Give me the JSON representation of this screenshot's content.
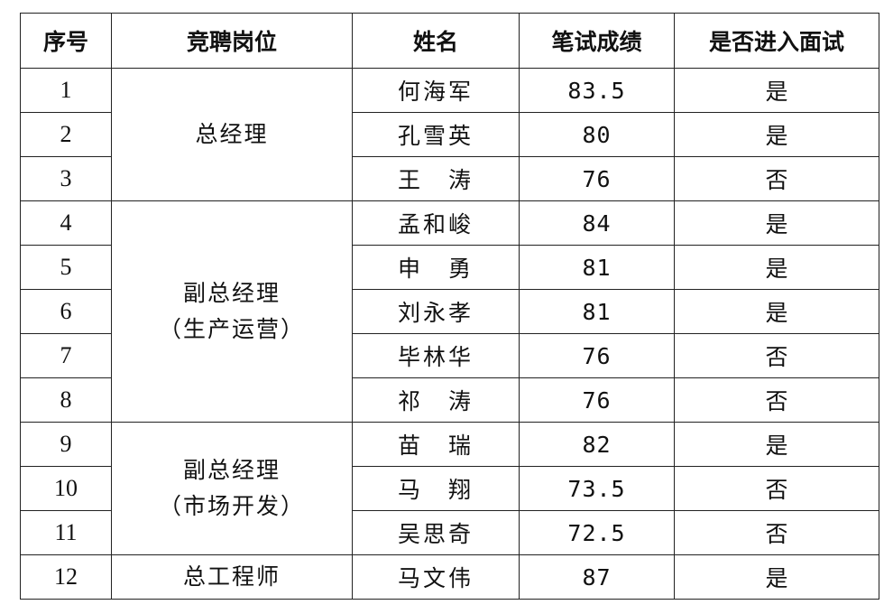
{
  "headers": [
    "序号",
    "竞聘岗位",
    "姓名",
    "笔试成绩",
    "是否进入面试"
  ],
  "positions": [
    {
      "lines": [
        "总经理"
      ]
    },
    {
      "lines": [
        "副总经理",
        "（生产运营）"
      ]
    },
    {
      "lines": [
        "副总经理",
        "（市场开发）"
      ]
    },
    {
      "lines": [
        "总工程师"
      ]
    }
  ],
  "rows": [
    {
      "no": "1",
      "name": "何海军",
      "score": "83.5",
      "interview": "是"
    },
    {
      "no": "2",
      "name": "孔雪英",
      "score": "80",
      "interview": "是"
    },
    {
      "no": "3",
      "name": "王　涛",
      "score": "76",
      "interview": "否"
    },
    {
      "no": "4",
      "name": "孟和峻",
      "score": "84",
      "interview": "是"
    },
    {
      "no": "5",
      "name": "申　勇",
      "score": "81",
      "interview": "是"
    },
    {
      "no": "6",
      "name": "刘永孝",
      "score": "81",
      "interview": "是"
    },
    {
      "no": "7",
      "name": "毕林华",
      "score": "76",
      "interview": "否"
    },
    {
      "no": "8",
      "name": "祁　涛",
      "score": "76",
      "interview": "否"
    },
    {
      "no": "9",
      "name": "苗　瑞",
      "score": "82",
      "interview": "是"
    },
    {
      "no": "10",
      "name": "马　翔",
      "score": "73.5",
      "interview": "否"
    },
    {
      "no": "11",
      "name": "吴思奇",
      "score": "72.5",
      "interview": "否"
    },
    {
      "no": "12",
      "name": "马文伟",
      "score": "87",
      "interview": "是"
    }
  ]
}
